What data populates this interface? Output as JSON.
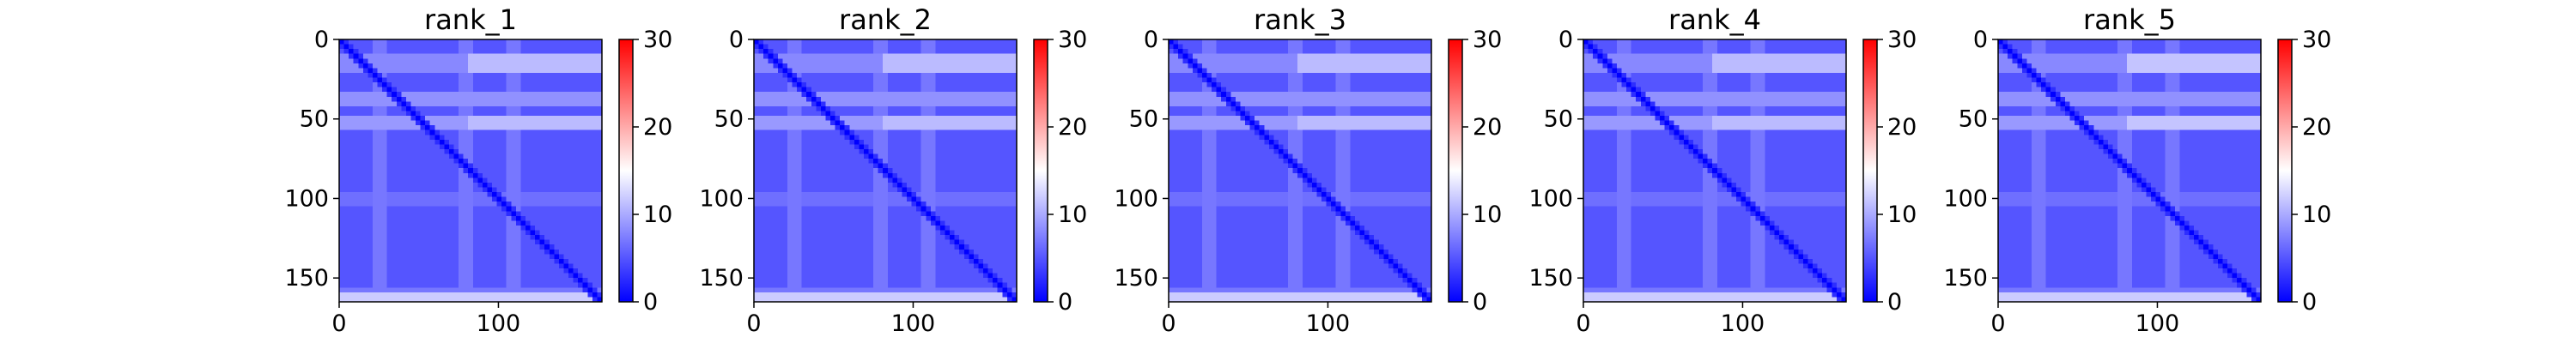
{
  "chart_data": [
    {
      "type": "heatmap",
      "title": "rank_1",
      "xlabel": "",
      "ylabel": "",
      "n": 165,
      "xlim": [
        0,
        165
      ],
      "ylim": [
        165,
        0
      ],
      "x_ticks": [
        0,
        100
      ],
      "y_ticks": [
        0,
        50,
        100,
        150
      ],
      "colorbar": {
        "cmap": "bwr",
        "vmin": 0,
        "vmax": 30,
        "ticks": [
          0,
          10,
          20,
          30
        ]
      },
      "diagonal_value": 0,
      "background_value": 5,
      "row_bands": [
        {
          "from": 10,
          "to": 20,
          "value": 8
        },
        {
          "from": 33,
          "to": 42,
          "value": 8.5
        },
        {
          "from": 48,
          "to": 58,
          "value": 9
        },
        {
          "from": 95,
          "to": 105,
          "value": 6.5
        },
        {
          "from": 155,
          "to": 165,
          "value": 7
        }
      ],
      "col_bands": [
        {
          "from": 20,
          "to": 30,
          "value": 7
        },
        {
          "from": 75,
          "to": 85,
          "value": 7
        },
        {
          "from": 105,
          "to": 115,
          "value": 7
        }
      ],
      "hot_regions": [
        {
          "rows": [
            10,
            20
          ],
          "cols": [
            80,
            165
          ],
          "value": 11
        },
        {
          "rows": [
            48,
            58
          ],
          "cols": [
            80,
            165
          ],
          "value": 11
        },
        {
          "rows": [
            160,
            165
          ],
          "cols": [
            0,
            165
          ],
          "value": 12
        }
      ]
    },
    {
      "type": "heatmap",
      "title": "rank_2",
      "xlabel": "",
      "ylabel": "",
      "n": 165,
      "xlim": [
        0,
        165
      ],
      "ylim": [
        165,
        0
      ],
      "x_ticks": [
        0,
        100
      ],
      "y_ticks": [
        0,
        50,
        100,
        150
      ],
      "colorbar": {
        "cmap": "bwr",
        "vmin": 0,
        "vmax": 30,
        "ticks": [
          0,
          10,
          20,
          30
        ]
      },
      "diagonal_value": 0,
      "background_value": 5,
      "row_bands": [
        {
          "from": 10,
          "to": 20,
          "value": 8
        },
        {
          "from": 33,
          "to": 42,
          "value": 8.5
        },
        {
          "from": 48,
          "to": 58,
          "value": 9
        },
        {
          "from": 95,
          "to": 105,
          "value": 6.5
        },
        {
          "from": 155,
          "to": 165,
          "value": 7
        }
      ],
      "col_bands": [
        {
          "from": 20,
          "to": 30,
          "value": 7
        },
        {
          "from": 75,
          "to": 85,
          "value": 7
        },
        {
          "from": 105,
          "to": 115,
          "value": 7
        }
      ],
      "hot_regions": [
        {
          "rows": [
            10,
            20
          ],
          "cols": [
            80,
            165
          ],
          "value": 11
        },
        {
          "rows": [
            48,
            58
          ],
          "cols": [
            80,
            165
          ],
          "value": 11
        },
        {
          "rows": [
            160,
            165
          ],
          "cols": [
            0,
            165
          ],
          "value": 12
        }
      ]
    },
    {
      "type": "heatmap",
      "title": "rank_3",
      "xlabel": "",
      "ylabel": "",
      "n": 165,
      "xlim": [
        0,
        165
      ],
      "ylim": [
        165,
        0
      ],
      "x_ticks": [
        0,
        100
      ],
      "y_ticks": [
        0,
        50,
        100,
        150
      ],
      "colorbar": {
        "cmap": "bwr",
        "vmin": 0,
        "vmax": 30,
        "ticks": [
          0,
          10,
          20,
          30
        ]
      },
      "diagonal_value": 0,
      "background_value": 5,
      "row_bands": [
        {
          "from": 10,
          "to": 20,
          "value": 8
        },
        {
          "from": 33,
          "to": 42,
          "value": 8.5
        },
        {
          "from": 48,
          "to": 58,
          "value": 9
        },
        {
          "from": 95,
          "to": 105,
          "value": 6.5
        },
        {
          "from": 155,
          "to": 165,
          "value": 7
        }
      ],
      "col_bands": [
        {
          "from": 20,
          "to": 30,
          "value": 7
        },
        {
          "from": 75,
          "to": 85,
          "value": 7
        },
        {
          "from": 105,
          "to": 115,
          "value": 7
        }
      ],
      "hot_regions": [
        {
          "rows": [
            10,
            20
          ],
          "cols": [
            80,
            165
          ],
          "value": 11
        },
        {
          "rows": [
            48,
            58
          ],
          "cols": [
            80,
            165
          ],
          "value": 11
        },
        {
          "rows": [
            160,
            165
          ],
          "cols": [
            0,
            165
          ],
          "value": 12
        }
      ]
    },
    {
      "type": "heatmap",
      "title": "rank_4",
      "xlabel": "",
      "ylabel": "",
      "n": 165,
      "xlim": [
        0,
        165
      ],
      "ylim": [
        165,
        0
      ],
      "x_ticks": [
        0,
        100
      ],
      "y_ticks": [
        0,
        50,
        100,
        150
      ],
      "colorbar": {
        "cmap": "bwr",
        "vmin": 0,
        "vmax": 30,
        "ticks": [
          0,
          10,
          20,
          30
        ]
      },
      "diagonal_value": 0,
      "background_value": 5,
      "row_bands": [
        {
          "from": 10,
          "to": 20,
          "value": 8
        },
        {
          "from": 33,
          "to": 42,
          "value": 8.5
        },
        {
          "from": 48,
          "to": 58,
          "value": 9
        },
        {
          "from": 95,
          "to": 105,
          "value": 6.5
        },
        {
          "from": 155,
          "to": 165,
          "value": 7
        }
      ],
      "col_bands": [
        {
          "from": 20,
          "to": 30,
          "value": 7
        },
        {
          "from": 75,
          "to": 85,
          "value": 7
        },
        {
          "from": 105,
          "to": 115,
          "value": 7
        }
      ],
      "hot_regions": [
        {
          "rows": [
            10,
            20
          ],
          "cols": [
            80,
            165
          ],
          "value": 11
        },
        {
          "rows": [
            48,
            58
          ],
          "cols": [
            80,
            165
          ],
          "value": 11
        },
        {
          "rows": [
            160,
            165
          ],
          "cols": [
            0,
            165
          ],
          "value": 12
        }
      ]
    },
    {
      "type": "heatmap",
      "title": "rank_5",
      "xlabel": "",
      "ylabel": "",
      "n": 165,
      "xlim": [
        0,
        165
      ],
      "ylim": [
        165,
        0
      ],
      "x_ticks": [
        0,
        100
      ],
      "y_ticks": [
        0,
        50,
        100,
        150
      ],
      "colorbar": {
        "cmap": "bwr",
        "vmin": 0,
        "vmax": 30,
        "ticks": [
          0,
          10,
          20,
          30
        ]
      },
      "diagonal_value": 0,
      "background_value": 5,
      "row_bands": [
        {
          "from": 10,
          "to": 20,
          "value": 8
        },
        {
          "from": 33,
          "to": 42,
          "value": 8.5
        },
        {
          "from": 48,
          "to": 58,
          "value": 9
        },
        {
          "from": 95,
          "to": 105,
          "value": 6.5
        },
        {
          "from": 155,
          "to": 165,
          "value": 7
        }
      ],
      "col_bands": [
        {
          "from": 20,
          "to": 30,
          "value": 7
        },
        {
          "from": 75,
          "to": 85,
          "value": 7
        },
        {
          "from": 105,
          "to": 115,
          "value": 7
        }
      ],
      "hot_regions": [
        {
          "rows": [
            10,
            20
          ],
          "cols": [
            80,
            165
          ],
          "value": 11.5
        },
        {
          "rows": [
            48,
            58
          ],
          "cols": [
            80,
            165
          ],
          "value": 11.5
        },
        {
          "rows": [
            160,
            165
          ],
          "cols": [
            0,
            165
          ],
          "value": 12
        }
      ]
    }
  ]
}
